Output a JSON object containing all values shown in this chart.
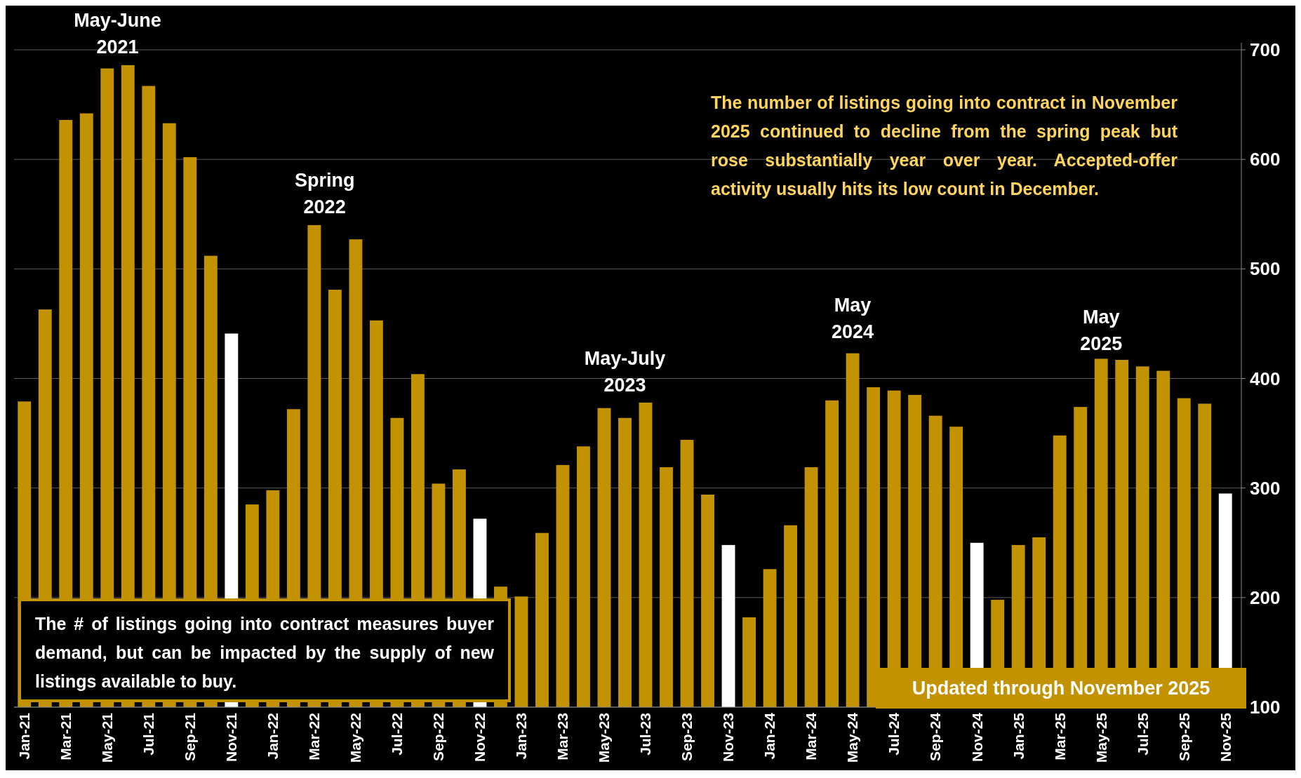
{
  "chart_data": {
    "type": "bar",
    "categories": [
      "Jan-21",
      null,
      "Mar-21",
      null,
      "May-21",
      null,
      "Jul-21",
      null,
      "Sep-21",
      null,
      "Nov-21",
      null,
      "Jan-22",
      null,
      "Mar-22",
      null,
      "May-22",
      null,
      "Jul-22",
      null,
      "Sep-22",
      null,
      "Nov-22",
      null,
      "Jan-23",
      null,
      "Mar-23",
      null,
      "May-23",
      null,
      "Jul-23",
      null,
      "Sep-23",
      null,
      "Nov-23",
      null,
      "Jan-24",
      null,
      "Mar-24",
      null,
      "May-24",
      null,
      "Jul-24",
      null,
      "Sep-24",
      null,
      "Nov-24",
      null,
      "Jan-25",
      null,
      "Mar-25",
      null,
      "May-25",
      null,
      "Jul-25",
      null,
      "Sep-25",
      null,
      "Nov-25"
    ],
    "values": [
      379,
      463,
      636,
      642,
      683,
      686,
      667,
      633,
      602,
      512,
      441,
      285,
      298,
      372,
      540,
      481,
      527,
      453,
      364,
      404,
      304,
      317,
      272,
      210,
      201,
      259,
      321,
      338,
      373,
      364,
      378,
      319,
      344,
      294,
      248,
      182,
      226,
      266,
      319,
      380,
      423,
      392,
      389,
      385,
      366,
      356,
      250,
      198,
      248,
      255,
      348,
      374,
      418,
      417,
      411,
      407,
      382,
      377,
      295
    ],
    "colors": [
      "#c29200",
      "#c29200",
      "#c29200",
      "#c29200",
      "#c29200",
      "#c29200",
      "#c29200",
      "#c29200",
      "#c29200",
      "#c29200",
      "#ffffff",
      "#c29200",
      "#c29200",
      "#c29200",
      "#c29200",
      "#c29200",
      "#c29200",
      "#c29200",
      "#c29200",
      "#c29200",
      "#c29200",
      "#c29200",
      "#ffffff",
      "#c29200",
      "#c29200",
      "#c29200",
      "#c29200",
      "#c29200",
      "#c29200",
      "#c29200",
      "#c29200",
      "#c29200",
      "#c29200",
      "#c29200",
      "#ffffff",
      "#c29200",
      "#c29200",
      "#c29200",
      "#c29200",
      "#c29200",
      "#c29200",
      "#c29200",
      "#c29200",
      "#c29200",
      "#c29200",
      "#c29200",
      "#ffffff",
      "#c29200",
      "#c29200",
      "#c29200",
      "#c29200",
      "#c29200",
      "#c29200",
      "#c29200",
      "#c29200",
      "#c29200",
      "#c29200",
      "#c29200",
      "#ffffff"
    ],
    "ylim": [
      100,
      700
    ],
    "yticks": [
      100,
      200,
      300,
      400,
      500,
      600,
      700
    ],
    "grid": "y",
    "annotations": [
      "May-June 2021",
      "Spring 2022",
      "May-July 2023",
      "May 2024",
      "May 2025",
      "The number of listings going into contract in November 2025 continued to decline from the spring peak but rose substantially year over year. Accepted-offer activity usually hits its low count in December.",
      "The # of listings going into contract measures buyer demand, but can be impacted by the supply of new listings available to buy.",
      "Updated through November 2025"
    ]
  }
}
